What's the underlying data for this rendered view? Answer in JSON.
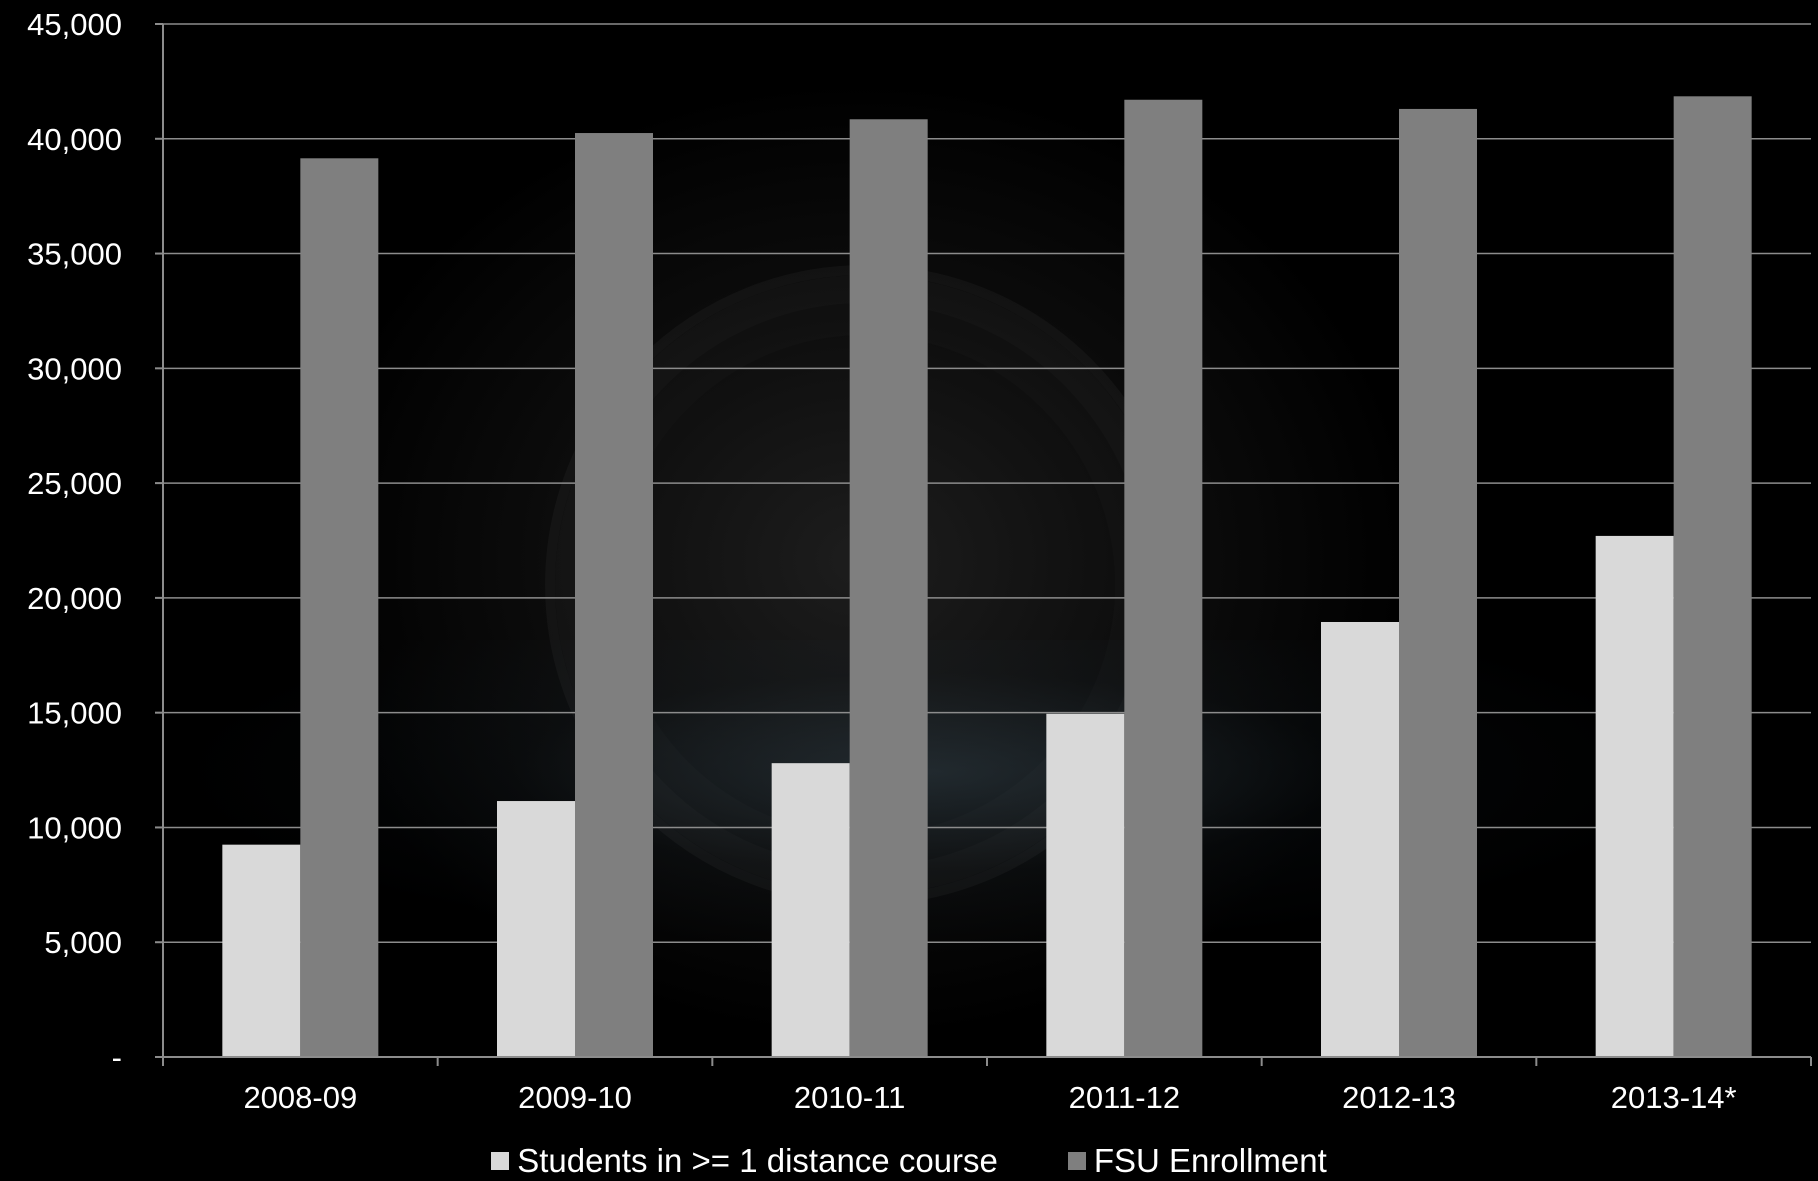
{
  "chart_data": {
    "type": "bar",
    "categories": [
      "2008-09",
      "2009-10",
      "2010-11",
      "2011-12",
      "2012-13",
      "2013-14*"
    ],
    "series": [
      {
        "name": "Students in >= 1 distance course",
        "color": "#d9d9d9",
        "values": [
          9250,
          11150,
          12800,
          14950,
          18950,
          22700
        ]
      },
      {
        "name": "FSU Enrollment",
        "color": "#7f7f7f",
        "values": [
          39150,
          40250,
          40850,
          41700,
          41300,
          41850
        ]
      }
    ],
    "yticks": [
      {
        "value": 0,
        "label": "-"
      },
      {
        "value": 5000,
        "label": "5,000"
      },
      {
        "value": 10000,
        "label": "10,000"
      },
      {
        "value": 15000,
        "label": "15,000"
      },
      {
        "value": 20000,
        "label": "20,000"
      },
      {
        "value": 25000,
        "label": "25,000"
      },
      {
        "value": 30000,
        "label": "30,000"
      },
      {
        "value": 35000,
        "label": "35,000"
      },
      {
        "value": 40000,
        "label": "40,000"
      },
      {
        "value": 45000,
        "label": "45,000"
      }
    ],
    "ylim": [
      0,
      45000
    ],
    "grid": true,
    "legend_position": "bottom",
    "title": "",
    "xlabel": "",
    "ylabel": ""
  },
  "colors": {
    "background": "#000000",
    "gridline": "#8c8c8c",
    "axis": "#8c8c8c",
    "text": "#ffffff"
  }
}
